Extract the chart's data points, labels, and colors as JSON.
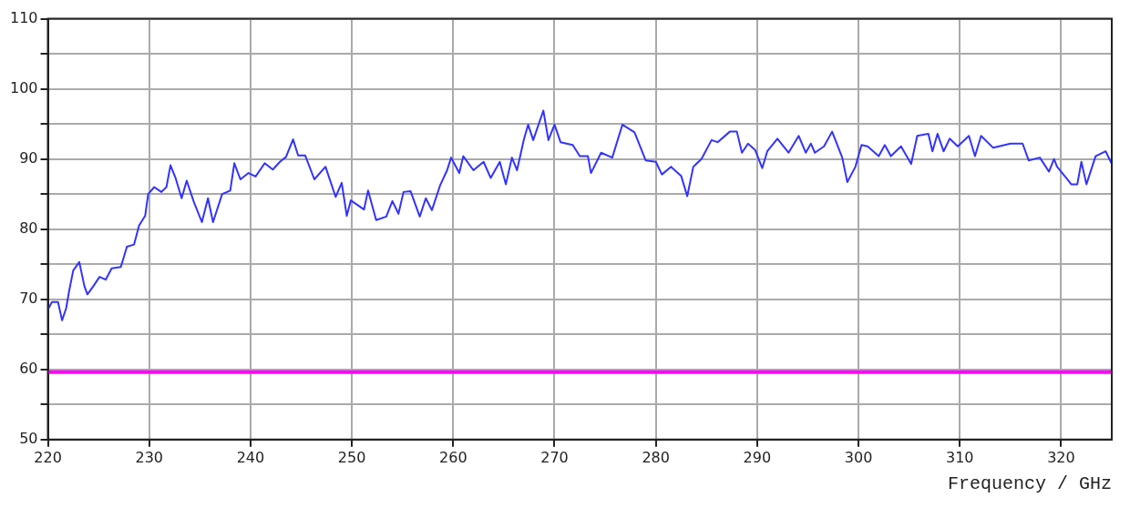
{
  "chart_data": {
    "type": "line",
    "xlabel": "Frequency / GHz",
    "xlim": [
      220,
      325
    ],
    "xticks": [
      220,
      230,
      240,
      250,
      260,
      270,
      280,
      290,
      300,
      310,
      320
    ],
    "ylim": [
      50,
      110
    ],
    "yticks": [
      50,
      {
        "value": 55,
        "label": null
      },
      60,
      {
        "value": 65,
        "label": null
      },
      70,
      {
        "value": 75,
        "label": null
      },
      80,
      {
        "value": 85,
        "label": null
      },
      90,
      {
        "value": 95,
        "label": null
      },
      100,
      {
        "value": 105,
        "label": null
      },
      110
    ],
    "grid": true,
    "legend": false,
    "marker": "none",
    "line_style": "solid",
    "ref_lines": [
      {
        "axis": "y",
        "value": 59.6,
        "color": "#ff00ff"
      }
    ],
    "series": [
      {
        "color": "#3333ff",
        "x": [
          220,
          220.4,
          221.0,
          221.4,
          221.8,
          222.1,
          222.5,
          223.1,
          223.6,
          223.9,
          224.5,
          225.1,
          225.7,
          226.3,
          227.2,
          227.8,
          228.5,
          229.0,
          229.6,
          229.9,
          230.5,
          231.2,
          231.7,
          232.1,
          232.6,
          233.2,
          233.7,
          234.4,
          235.2,
          235.8,
          236.3,
          237.2,
          238.0,
          238.4,
          239.0,
          239.8,
          240.5,
          241.4,
          242.2,
          242.9,
          243.5,
          244.2,
          244.7,
          245.4,
          246.3,
          247.4,
          248.4,
          249.0,
          249.5,
          249.9,
          251.2,
          251.6,
          252.4,
          253.4,
          254.0,
          254.6,
          255.1,
          255.8,
          256.7,
          257.3,
          257.9,
          258.7,
          259.4,
          259.8,
          260.6,
          261.0,
          262.0,
          263.0,
          263.7,
          264.6,
          265.2,
          265.8,
          266.3,
          267.0,
          267.4,
          267.9,
          268.9,
          269.4,
          270.0,
          270.6,
          271.8,
          272.5,
          273.3,
          273.6,
          274.6,
          275.7,
          276.7,
          277.9,
          279.0,
          280.0,
          280.6,
          281.5,
          282.5,
          283.1,
          283.7,
          284.5,
          285.5,
          286.1,
          287.3,
          288.0,
          288.5,
          289.1,
          289.8,
          290.5,
          291.0,
          292.0,
          293.1,
          294.1,
          294.8,
          295.3,
          295.7,
          296.6,
          297.4,
          298.4,
          298.9,
          299.7,
          300.3,
          300.9,
          302.0,
          302.6,
          303.2,
          304.2,
          305.2,
          305.8,
          306.9,
          307.3,
          307.8,
          308.4,
          309.0,
          309.8,
          310.9,
          311.5,
          312.1,
          313.3,
          315.0,
          316.2,
          316.8,
          317.9,
          318.8,
          319.3,
          319.6,
          320.5,
          321.0,
          321.6,
          322.0,
          322.5,
          323.4,
          324.4,
          325.0
        ],
        "values": [
          68.5,
          69.6,
          69.6,
          67.0,
          68.7,
          71.2,
          74.1,
          75.3,
          71.9,
          70.7,
          71.9,
          73.2,
          72.8,
          74.4,
          74.6,
          77.5,
          77.8,
          80.5,
          81.9,
          85.0,
          86.0,
          85.3,
          86.0,
          89.1,
          87.3,
          84.4,
          86.9,
          83.9,
          81.0,
          84.4,
          81.0,
          85.0,
          85.5,
          89.4,
          87.1,
          88.0,
          87.5,
          89.4,
          88.5,
          89.6,
          90.3,
          92.8,
          90.5,
          90.5,
          87.1,
          88.9,
          84.6,
          86.6,
          81.9,
          84.1,
          82.8,
          85.5,
          81.3,
          81.8,
          84.0,
          82.2,
          85.3,
          85.4,
          81.8,
          84.4,
          82.7,
          86.2,
          88.4,
          90.2,
          88.0,
          90.4,
          88.4,
          89.6,
          87.3,
          89.6,
          86.4,
          90.2,
          88.4,
          92.9,
          94.9,
          92.7,
          96.9,
          92.7,
          94.9,
          92.4,
          92.0,
          90.4,
          90.4,
          88.0,
          90.9,
          90.2,
          94.9,
          93.8,
          89.8,
          89.6,
          87.8,
          88.9,
          87.6,
          84.7,
          88.9,
          90.0,
          92.7,
          92.4,
          93.9,
          93.9,
          90.9,
          92.2,
          91.3,
          88.7,
          91.1,
          92.9,
          90.9,
          93.3,
          90.9,
          92.2,
          90.9,
          91.8,
          93.9,
          90.2,
          86.7,
          88.9,
          92.0,
          91.8,
          90.4,
          92.0,
          90.4,
          91.8,
          89.3,
          93.3,
          93.6,
          91.1,
          93.6,
          91.1,
          92.9,
          91.8,
          93.3,
          90.4,
          93.3,
          91.6,
          92.2,
          92.2,
          89.8,
          90.2,
          88.2,
          90.0,
          88.9,
          87.3,
          86.4,
          86.4,
          89.6,
          86.4,
          90.4,
          91.1,
          89.3
        ]
      }
    ]
  }
}
